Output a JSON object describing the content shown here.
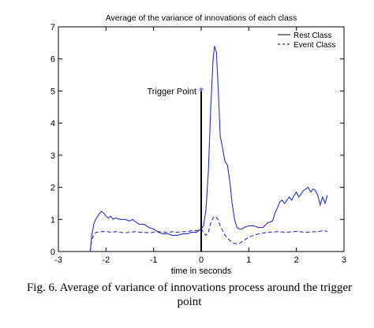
{
  "caption": "Fig. 6. Average of variance of innovations process around the trigger point",
  "chart_data": {
    "type": "line",
    "title": "Average of the variance of innovations of each class",
    "xlabel": "time in seconds",
    "ylabel": "",
    "xlim": [
      -3,
      3
    ],
    "ylim": [
      0,
      7
    ],
    "xticks": [
      "-3",
      "-2",
      "-1",
      "0",
      "1",
      "2",
      "3"
    ],
    "yticks": [
      "0",
      "1",
      "2",
      "3",
      "4",
      "5",
      "6",
      "7"
    ],
    "legend": {
      "placement": "top-right",
      "entries": [
        "Rest Class",
        "Event Class"
      ]
    },
    "annotation": {
      "label": "Trigger Point",
      "x": 0,
      "y": 5
    },
    "colors": {
      "lines": "#2230c8",
      "trigger": "#000000",
      "frame": "#000000"
    },
    "series": [
      {
        "name": "Rest Class",
        "style": "solid",
        "points": [
          [
            -2.33,
            0.0
          ],
          [
            -2.3,
            0.5
          ],
          [
            -2.25,
            0.9
          ],
          [
            -2.2,
            1.05
          ],
          [
            -2.15,
            1.15
          ],
          [
            -2.1,
            1.25
          ],
          [
            -2.05,
            1.2
          ],
          [
            -2.0,
            1.1
          ],
          [
            -1.95,
            1.05
          ],
          [
            -1.9,
            1.1
          ],
          [
            -1.85,
            1.0
          ],
          [
            -1.8,
            1.05
          ],
          [
            -1.7,
            1.0
          ],
          [
            -1.6,
            1.0
          ],
          [
            -1.5,
            0.95
          ],
          [
            -1.45,
            1.0
          ],
          [
            -1.4,
            0.95
          ],
          [
            -1.3,
            0.85
          ],
          [
            -1.2,
            0.85
          ],
          [
            -1.1,
            0.75
          ],
          [
            -1.0,
            0.7
          ],
          [
            -0.9,
            0.6
          ],
          [
            -0.8,
            0.55
          ],
          [
            -0.7,
            0.55
          ],
          [
            -0.6,
            0.5
          ],
          [
            -0.5,
            0.5
          ],
          [
            -0.4,
            0.55
          ],
          [
            -0.3,
            0.55
          ],
          [
            -0.2,
            0.6
          ],
          [
            -0.1,
            0.6
          ],
          [
            0.0,
            0.7
          ],
          [
            0.05,
            0.8
          ],
          [
            0.1,
            1.3
          ],
          [
            0.15,
            2.5
          ],
          [
            0.2,
            4.5
          ],
          [
            0.25,
            6.0
          ],
          [
            0.28,
            6.4
          ],
          [
            0.32,
            6.2
          ],
          [
            0.36,
            5.0
          ],
          [
            0.4,
            3.6
          ],
          [
            0.45,
            3.2
          ],
          [
            0.5,
            2.8
          ],
          [
            0.55,
            2.7
          ],
          [
            0.6,
            2.2
          ],
          [
            0.65,
            1.5
          ],
          [
            0.7,
            1.0
          ],
          [
            0.75,
            0.75
          ],
          [
            0.8,
            0.7
          ],
          [
            0.85,
            0.7
          ],
          [
            0.9,
            0.75
          ],
          [
            1.0,
            0.8
          ],
          [
            1.1,
            0.8
          ],
          [
            1.2,
            0.75
          ],
          [
            1.3,
            0.75
          ],
          [
            1.4,
            0.9
          ],
          [
            1.5,
            0.95
          ],
          [
            1.55,
            1.2
          ],
          [
            1.6,
            1.35
          ],
          [
            1.65,
            1.55
          ],
          [
            1.7,
            1.6
          ],
          [
            1.75,
            1.5
          ],
          [
            1.8,
            1.6
          ],
          [
            1.85,
            1.7
          ],
          [
            1.9,
            1.6
          ],
          [
            1.95,
            1.75
          ],
          [
            2.0,
            1.85
          ],
          [
            2.05,
            1.7
          ],
          [
            2.1,
            1.8
          ],
          [
            2.15,
            1.9
          ],
          [
            2.2,
            1.95
          ],
          [
            2.25,
            2.0
          ],
          [
            2.3,
            1.85
          ],
          [
            2.35,
            1.95
          ],
          [
            2.4,
            1.9
          ],
          [
            2.45,
            1.75
          ],
          [
            2.5,
            1.45
          ],
          [
            2.55,
            1.7
          ],
          [
            2.6,
            1.5
          ],
          [
            2.65,
            1.75
          ]
        ]
      },
      {
        "name": "Event Class",
        "style": "dashed",
        "points": [
          [
            -2.33,
            0.0
          ],
          [
            -2.3,
            0.35
          ],
          [
            -2.25,
            0.55
          ],
          [
            -2.2,
            0.6
          ],
          [
            -2.1,
            0.62
          ],
          [
            -2.0,
            0.63
          ],
          [
            -1.9,
            0.6
          ],
          [
            -1.8,
            0.62
          ],
          [
            -1.7,
            0.6
          ],
          [
            -1.6,
            0.58
          ],
          [
            -1.5,
            0.6
          ],
          [
            -1.4,
            0.62
          ],
          [
            -1.3,
            0.6
          ],
          [
            -1.2,
            0.6
          ],
          [
            -1.1,
            0.58
          ],
          [
            -1.0,
            0.6
          ],
          [
            -0.9,
            0.62
          ],
          [
            -0.8,
            0.6
          ],
          [
            -0.7,
            0.6
          ],
          [
            -0.6,
            0.62
          ],
          [
            -0.5,
            0.6
          ],
          [
            -0.4,
            0.62
          ],
          [
            -0.3,
            0.62
          ],
          [
            -0.2,
            0.65
          ],
          [
            -0.1,
            0.65
          ],
          [
            0.0,
            0.7
          ],
          [
            0.05,
            0.6
          ],
          [
            0.1,
            0.5
          ],
          [
            0.15,
            0.6
          ],
          [
            0.2,
            0.9
          ],
          [
            0.25,
            1.05
          ],
          [
            0.3,
            1.1
          ],
          [
            0.35,
            1.0
          ],
          [
            0.4,
            0.8
          ],
          [
            0.5,
            0.5
          ],
          [
            0.6,
            0.35
          ],
          [
            0.7,
            0.25
          ],
          [
            0.8,
            0.25
          ],
          [
            0.9,
            0.35
          ],
          [
            1.0,
            0.45
          ],
          [
            1.1,
            0.5
          ],
          [
            1.2,
            0.55
          ],
          [
            1.4,
            0.6
          ],
          [
            1.6,
            0.62
          ],
          [
            1.8,
            0.6
          ],
          [
            2.0,
            0.63
          ],
          [
            2.2,
            0.6
          ],
          [
            2.4,
            0.62
          ],
          [
            2.6,
            0.65
          ],
          [
            2.65,
            0.62
          ]
        ]
      }
    ]
  }
}
